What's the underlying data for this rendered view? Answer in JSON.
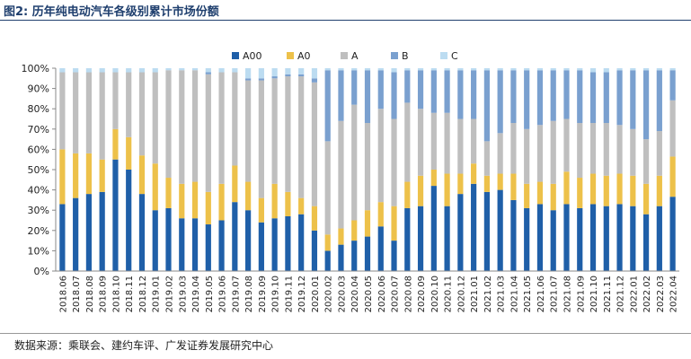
{
  "header": {
    "title": "图2:  历年纯电动汽车各级别累计市场份额"
  },
  "footer": {
    "source": "数据来源：乘联会、建约车评、广发证券发展研究中心"
  },
  "chart_data": {
    "type": "bar",
    "stacked": true,
    "percent": true,
    "title": "历年纯电动汽车各级别累计市场份额",
    "xlabel": "",
    "ylabel": "",
    "ylim": [
      0,
      100
    ],
    "yticks": [
      "0%",
      "10%",
      "20%",
      "30%",
      "40%",
      "50%",
      "60%",
      "70%",
      "80%",
      "90%",
      "100%"
    ],
    "legend_position": "top",
    "categories": [
      "2018.06",
      "2018.07",
      "2018.08",
      "2018.09",
      "2018.10",
      "2018.11",
      "2018.12",
      "2019.01",
      "2019.02",
      "2019.03",
      "2019.04",
      "2019.05",
      "2019.06",
      "2019.07",
      "2019.08",
      "2019.09",
      "2019.10",
      "2019.11",
      "2019.12",
      "2020.01",
      "2020.02",
      "2020.03",
      "2020.04",
      "2020.05",
      "2020.06",
      "2020.07",
      "2020.08",
      "2020.09",
      "2020.10",
      "2020.11",
      "2020.12",
      "2021.01",
      "2021.02",
      "2021.03",
      "2021.04",
      "2021.05",
      "2021.06",
      "2021.07",
      "2021.08",
      "2021.09",
      "2021.10",
      "2021.11",
      "2021.12",
      "2022.01",
      "2022.02",
      "2022.03",
      "2022.04"
    ],
    "series": [
      {
        "name": "A00",
        "color": "#1f5fa8",
        "values": [
          33,
          36,
          38,
          39,
          55,
          50,
          38,
          30,
          31,
          26,
          26,
          23,
          25,
          34,
          30,
          24,
          26,
          27,
          28,
          20,
          10,
          13,
          15,
          17,
          22,
          15,
          31,
          32,
          42,
          32,
          38,
          43,
          39,
          40,
          35,
          31,
          33,
          30,
          33,
          31,
          33,
          32,
          33,
          32,
          28,
          32,
          37
        ]
      },
      {
        "name": "A0",
        "color": "#edc14a",
        "values": [
          27,
          22,
          20,
          16,
          15,
          16,
          19,
          23,
          15,
          17,
          18,
          16,
          18,
          18,
          14,
          12,
          17,
          12,
          8,
          12,
          8,
          8,
          10,
          13,
          12,
          17,
          13,
          15,
          8,
          16,
          10,
          10,
          8,
          8,
          13,
          12,
          11,
          13,
          16,
          15,
          15,
          15,
          15,
          15,
          15,
          15,
          20
        ]
      },
      {
        "name": "A",
        "color": "#bfbfbf",
        "values": [
          38,
          40,
          40,
          43,
          28,
          32,
          41,
          45,
          53,
          56,
          55,
          58,
          55,
          46,
          50,
          58,
          52,
          57,
          60,
          61,
          46,
          53,
          57,
          43,
          46,
          43,
          39,
          33,
          28,
          30,
          27,
          22,
          17,
          20,
          25,
          27,
          28,
          31,
          26,
          27,
          25,
          26,
          24,
          23,
          22,
          22,
          28
        ]
      },
      {
        "name": "B",
        "color": "#7aa0cf",
        "values": [
          0,
          0,
          0,
          0,
          0,
          0,
          0,
          0,
          0,
          0,
          0,
          1,
          0,
          0,
          1,
          1,
          1,
          1,
          1,
          2,
          35,
          25,
          17,
          26,
          19,
          23,
          16,
          19,
          21,
          21,
          24,
          24,
          35,
          31,
          26,
          29,
          27,
          25,
          24,
          26,
          25,
          25,
          27,
          29,
          34,
          30,
          15
        ]
      },
      {
        "name": "C",
        "color": "#bcdcf1",
        "values": [
          2,
          2,
          2,
          2,
          2,
          2,
          2,
          2,
          1,
          1,
          1,
          2,
          2,
          2,
          5,
          5,
          4,
          3,
          3,
          5,
          1,
          1,
          1,
          1,
          1,
          2,
          1,
          1,
          1,
          1,
          1,
          1,
          1,
          1,
          1,
          1,
          1,
          1,
          1,
          1,
          2,
          2,
          1,
          1,
          1,
          1,
          1
        ]
      }
    ]
  }
}
